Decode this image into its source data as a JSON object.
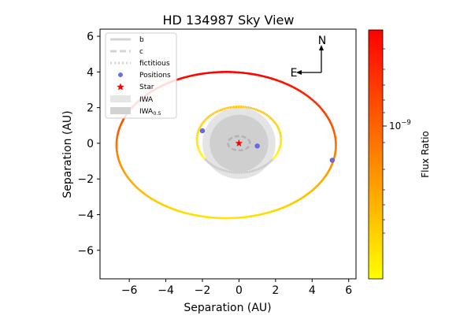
{
  "chart_data": {
    "type": "scatter",
    "title": "HD 134987 Sky View",
    "xlabel": "Separation (AU)",
    "ylabel": "Separation (AU)",
    "xlim": [
      -7.6,
      6.4
    ],
    "ylim": [
      -7.6,
      6.4
    ],
    "xticks": [
      -6,
      -4,
      -2,
      0,
      2,
      4,
      6
    ],
    "yticks": [
      -6,
      -4,
      -2,
      0,
      2,
      4,
      6
    ],
    "xtick_labels": [
      "−6",
      "−4",
      "−2",
      "0",
      "2",
      "4",
      "6"
    ],
    "ytick_labels": [
      "−6",
      "−4",
      "−2",
      "0",
      "2",
      "4",
      "6"
    ],
    "grid": false,
    "legend_placement": "top-left",
    "legend": {
      "b": "b",
      "c": "c",
      "fictitious": "fictitious",
      "positions": "Positions",
      "star": "Star",
      "iwa": "IWA",
      "iwa05_main": "IWA",
      "iwa05_sub": "0.5"
    },
    "compass": {
      "north": "N",
      "east": "E"
    },
    "colorbar": {
      "label": "Flux Ratio",
      "tick_base": "10",
      "tick_exp": "−9",
      "colormap": "autumn_r",
      "colors": [
        "#ffff00",
        "#ff0000"
      ]
    },
    "orbits": [
      {
        "name": "b",
        "center": [
          -0.7,
          -0.1
        ],
        "semi_axes": [
          6.0,
          4.1
        ],
        "style": "solid"
      },
      {
        "name": "c",
        "center": [
          0.0,
          0.0
        ],
        "semi_axes": [
          0.6,
          0.4
        ],
        "style": "dashed"
      },
      {
        "name": "fictitious",
        "center": [
          0.0,
          0.2
        ],
        "semi_axes": [
          2.3,
          1.85
        ],
        "style": "dotted"
      }
    ],
    "iwa_regions": [
      {
        "name": "IWA",
        "radius": 2.0
      },
      {
        "name": "IWA_0.5",
        "radius": 1.6
      }
    ],
    "star": {
      "x": 0.0,
      "y": 0.0
    },
    "positions": [
      {
        "x": 5.1,
        "y": -0.95
      },
      {
        "x": 1.0,
        "y": -0.15
      },
      {
        "x": -2.0,
        "y": 0.7
      }
    ]
  }
}
